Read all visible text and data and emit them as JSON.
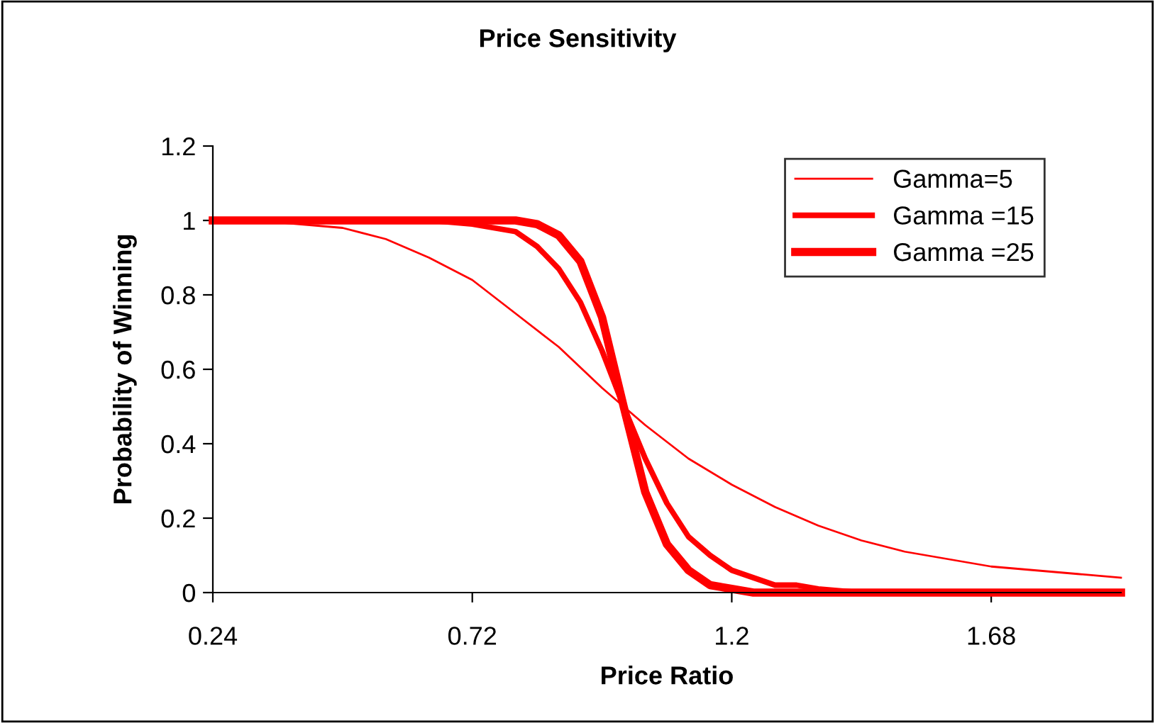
{
  "chart_data": {
    "type": "line",
    "title": "Price Sensitivity",
    "xlabel": "Price Ratio",
    "ylabel": "Probability of Winning",
    "xlim": [
      0.24,
      1.92
    ],
    "xticks": [
      0.24,
      0.72,
      1.2,
      1.68
    ],
    "ylim": [
      0,
      1.2
    ],
    "yticks": [
      0,
      0.2,
      0.4,
      0.6,
      0.8,
      1,
      1.2
    ],
    "grid": false,
    "legend": "top right",
    "marker": "none",
    "line_style": "solid",
    "series": [
      {
        "name": "Gamma=5",
        "color": "#ff0000",
        "x": [
          0.24,
          0.32,
          0.4,
          0.48,
          0.56,
          0.64,
          0.72,
          0.8,
          0.88,
          0.96,
          1.0,
          1.04,
          1.12,
          1.2,
          1.28,
          1.36,
          1.44,
          1.52,
          1.6,
          1.68,
          1.76,
          1.84,
          1.92
        ],
        "values": [
          1.0,
          1.0,
          0.99,
          0.98,
          0.95,
          0.9,
          0.84,
          0.75,
          0.66,
          0.55,
          0.5,
          0.45,
          0.36,
          0.29,
          0.23,
          0.18,
          0.14,
          0.11,
          0.09,
          0.07,
          0.06,
          0.05,
          0.04
        ]
      },
      {
        "name": "Gamma =15",
        "color": "#ff0000",
        "x": [
          0.24,
          0.4,
          0.56,
          0.64,
          0.72,
          0.76,
          0.8,
          0.84,
          0.88,
          0.92,
          0.96,
          1.0,
          1.04,
          1.08,
          1.12,
          1.16,
          1.2,
          1.24,
          1.28,
          1.32,
          1.36,
          1.44,
          1.52,
          1.6,
          1.68,
          1.76,
          1.84,
          1.92
        ],
        "values": [
          1.0,
          1.0,
          1.0,
          1.0,
          0.99,
          0.98,
          0.97,
          0.93,
          0.87,
          0.78,
          0.65,
          0.5,
          0.36,
          0.24,
          0.15,
          0.1,
          0.06,
          0.04,
          0.02,
          0.02,
          0.01,
          0.0,
          0.0,
          0.0,
          0.0,
          0.0,
          0.0,
          0.0
        ]
      },
      {
        "name": "Gamma =25",
        "color": "#ff0000",
        "x": [
          0.24,
          0.4,
          0.56,
          0.64,
          0.72,
          0.76,
          0.8,
          0.84,
          0.88,
          0.92,
          0.96,
          1.0,
          1.04,
          1.08,
          1.12,
          1.16,
          1.2,
          1.24,
          1.28,
          1.36,
          1.44,
          1.52,
          1.6,
          1.68,
          1.76,
          1.84,
          1.92
        ],
        "values": [
          1.0,
          1.0,
          1.0,
          1.0,
          1.0,
          1.0,
          1.0,
          0.99,
          0.96,
          0.89,
          0.74,
          0.5,
          0.27,
          0.13,
          0.06,
          0.02,
          0.01,
          0.0,
          0.0,
          0.0,
          0.0,
          0.0,
          0.0,
          0.0,
          0.0,
          0.0,
          0.0
        ]
      }
    ]
  }
}
